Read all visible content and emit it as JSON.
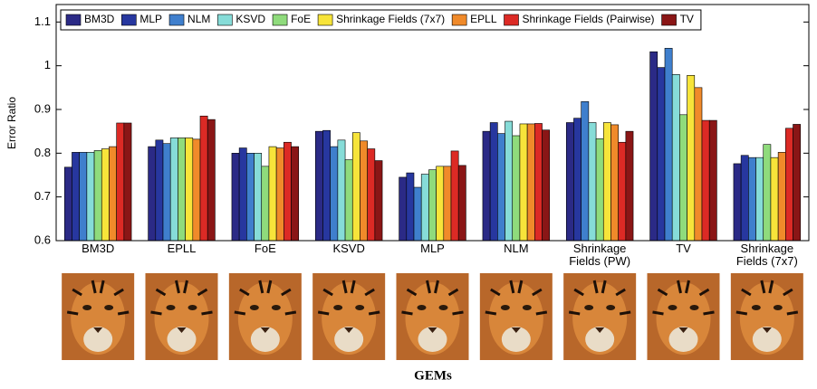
{
  "chart_data": {
    "type": "bar",
    "ylabel": "Error Ratio",
    "xlabel": "GEMs",
    "categories": [
      "BM3D",
      "EPLL",
      "FoE",
      "KSVD",
      "MLP",
      "NLM",
      "Shrinkage Fields (PW)",
      "TV",
      "Shrinkage Fields (7x7)"
    ],
    "series": [
      {
        "name": "BM3D",
        "color": "#2b2a86",
        "values": [
          0.768,
          0.815,
          0.8,
          0.85,
          0.745,
          0.85,
          0.87,
          1.032,
          0.776
        ]
      },
      {
        "name": "MLP",
        "color": "#27379f",
        "values": [
          0.802,
          0.83,
          0.812,
          0.852,
          0.755,
          0.87,
          0.88,
          0.996,
          0.795
        ]
      },
      {
        "name": "NLM",
        "color": "#3f7fcd",
        "values": [
          0.802,
          0.822,
          0.8,
          0.815,
          0.722,
          0.845,
          0.918,
          1.04,
          0.79
        ]
      },
      {
        "name": "KSVD",
        "color": "#86dcd8",
        "values": [
          0.802,
          0.835,
          0.8,
          0.83,
          0.752,
          0.873,
          0.87,
          0.98,
          0.79
        ]
      },
      {
        "name": "FoE",
        "color": "#8fdb7c",
        "values": [
          0.806,
          0.835,
          0.77,
          0.785,
          0.762,
          0.84,
          0.833,
          0.888,
          0.82
        ]
      },
      {
        "name": "Shrinkage Fields (7x7)",
        "color": "#f7e43a",
        "values": [
          0.81,
          0.835,
          0.815,
          0.847,
          0.77,
          0.867,
          0.87,
          0.978,
          0.79
        ]
      },
      {
        "name": "EPLL",
        "color": "#f08a2a",
        "values": [
          0.815,
          0.832,
          0.812,
          0.828,
          0.77,
          0.867,
          0.865,
          0.95,
          0.802
        ]
      },
      {
        "name": "Shrinkage Fields (Pairwise)",
        "color": "#dc2a25",
        "values": [
          0.869,
          0.885,
          0.825,
          0.81,
          0.805,
          0.868,
          0.825,
          0.875,
          0.857
        ]
      },
      {
        "name": "TV",
        "color": "#8a1616",
        "values": [
          0.869,
          0.877,
          0.815,
          0.783,
          0.772,
          0.853,
          0.85,
          0.875,
          0.866
        ]
      }
    ],
    "ylim": [
      0.6,
      1.14
    ],
    "yticks": [
      0.6,
      0.7,
      0.8,
      0.9,
      1,
      1.1
    ],
    "legend": "top"
  }
}
